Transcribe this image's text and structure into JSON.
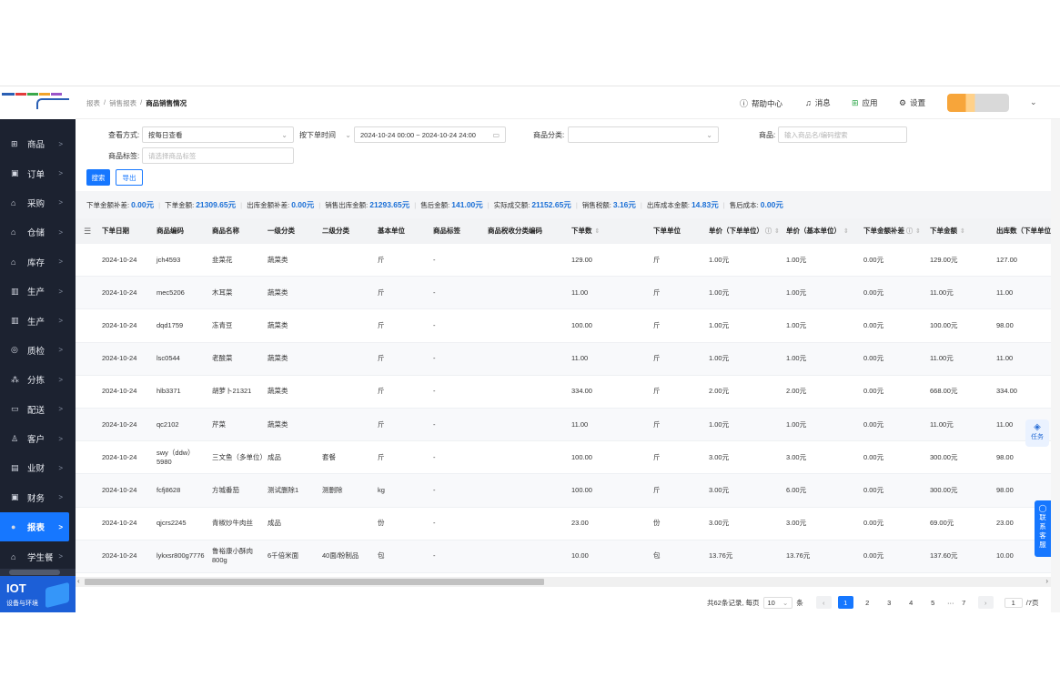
{
  "sidebar": {
    "items": [
      {
        "icon": "grid-icon",
        "glyph": "⊞",
        "label": "商品"
      },
      {
        "icon": "order-icon",
        "glyph": "▣",
        "label": "订单"
      },
      {
        "icon": "purchase-icon",
        "glyph": "⌂",
        "label": "采购"
      },
      {
        "icon": "warehouse-icon",
        "glyph": "⌂",
        "label": "仓储"
      },
      {
        "icon": "inventory-icon",
        "glyph": "⌂",
        "label": "库存"
      },
      {
        "icon": "production-icon",
        "glyph": "▥",
        "label": "生产"
      },
      {
        "icon": "production-icon",
        "glyph": "▥",
        "label": "生产"
      },
      {
        "icon": "quality-icon",
        "glyph": "◎",
        "label": "质检"
      },
      {
        "icon": "sorting-icon",
        "glyph": "⁂",
        "label": "分拣"
      },
      {
        "icon": "delivery-icon",
        "glyph": "▭",
        "label": "配送"
      },
      {
        "icon": "customer-icon",
        "glyph": "♙",
        "label": "客户"
      },
      {
        "icon": "finance-icon",
        "glyph": "▤",
        "label": "业财"
      },
      {
        "icon": "accounting-icon",
        "glyph": "▣",
        "label": "财务"
      },
      {
        "icon": "report-icon",
        "glyph": "●",
        "label": "报表",
        "active": true
      },
      {
        "icon": "school-meal-icon",
        "glyph": "⌂",
        "label": "学生餐"
      }
    ],
    "chevron": ">",
    "iot_title": "IOT",
    "iot_subtitle": "设备与环境"
  },
  "header": {
    "breadcrumb": [
      "报表",
      "/",
      "销售报表",
      "/",
      "商品销售情况"
    ],
    "help": "帮助中心",
    "messages": "消息",
    "apps": "应用",
    "settings": "设置"
  },
  "filters": {
    "view_mode_label": "查看方式:",
    "view_mode_value": "按每日查看",
    "time_type_value": "按下单时间",
    "date_range": "2024-10-24 00:00 ~ 2024-10-24 24:00",
    "category_label": "商品分类:",
    "product_label": "商品:",
    "product_placeholder": "输入商品名/编码搜索",
    "tag_label": "商品标签:",
    "tag_placeholder": "请选择商品标签",
    "search_button": "搜索",
    "export_button": "导出"
  },
  "summary": [
    {
      "label": "下单金额补差:",
      "value": "0.00元"
    },
    {
      "label": "下单金额:",
      "value": "21309.65元"
    },
    {
      "label": "出库金额补差:",
      "value": "0.00元"
    },
    {
      "label": "销售出库金额:",
      "value": "21293.65元"
    },
    {
      "label": "售后金额:",
      "value": "141.00元"
    },
    {
      "label": "实际成交额:",
      "value": "21152.65元"
    },
    {
      "label": "销售税额:",
      "value": "3.16元"
    },
    {
      "label": "出库成本金额:",
      "value": "14.83元"
    },
    {
      "label": "售后成本:",
      "value": "0.00元"
    }
  ],
  "table": {
    "columns": [
      "下单日期",
      "商品编码",
      "商品名称",
      "一级分类",
      "二级分类",
      "基本单位",
      "商品标签",
      "商品税收分类编码",
      "下单数",
      "下单单位",
      "单价（下单单位）",
      "单价（基本单位）",
      "下单金额补差",
      "下单金额",
      "出库数（下单单位）"
    ],
    "rows": [
      [
        "2024-10-24",
        "jch4593",
        "韭菜花",
        "蔬菜类",
        "",
        "斤",
        "-",
        "",
        "129.00",
        "斤",
        "1.00元",
        "1.00元",
        "0.00元",
        "129.00元",
        "127.00"
      ],
      [
        "2024-10-24",
        "mec5206",
        "木耳菜",
        "蔬菜类",
        "",
        "斤",
        "-",
        "",
        "11.00",
        "斤",
        "1.00元",
        "1.00元",
        "0.00元",
        "11.00元",
        "11.00"
      ],
      [
        "2024-10-24",
        "dqd1759",
        "冻青豆",
        "蔬菜类",
        "",
        "斤",
        "-",
        "",
        "100.00",
        "斤",
        "1.00元",
        "1.00元",
        "0.00元",
        "100.00元",
        "98.00"
      ],
      [
        "2024-10-24",
        "lsc0544",
        "老酸菜",
        "蔬菜类",
        "",
        "斤",
        "-",
        "",
        "11.00",
        "斤",
        "1.00元",
        "1.00元",
        "0.00元",
        "11.00元",
        "11.00"
      ],
      [
        "2024-10-24",
        "hlb3371",
        "胡萝卜21321",
        "蔬菜类",
        "",
        "斤",
        "-",
        "",
        "334.00",
        "斤",
        "2.00元",
        "2.00元",
        "0.00元",
        "668.00元",
        "334.00"
      ],
      [
        "2024-10-24",
        "qc2102",
        "芹菜",
        "蔬菜类",
        "",
        "斤",
        "-",
        "",
        "11.00",
        "斤",
        "1.00元",
        "1.00元",
        "0.00元",
        "11.00元",
        "11.00"
      ],
      [
        "2024-10-24",
        "swy（ddw）5980",
        "三文鱼（多单位）",
        "成品",
        "套餐",
        "斤",
        "-",
        "",
        "100.00",
        "斤",
        "3.00元",
        "3.00元",
        "0.00元",
        "300.00元",
        "98.00"
      ],
      [
        "2024-10-24",
        "fcfj8628",
        "方城番茄",
        "测试删除1",
        "测删除",
        "kg",
        "-",
        "",
        "100.00",
        "斤",
        "3.00元",
        "6.00元",
        "0.00元",
        "300.00元",
        "98.00"
      ],
      [
        "2024-10-24",
        "qjcrs2245",
        "青椒炒牛肉丝",
        "成品",
        "",
        "份",
        "-",
        "",
        "23.00",
        "份",
        "3.00元",
        "3.00元",
        "0.00元",
        "69.00元",
        "23.00"
      ],
      [
        "2024-10-24",
        "lykxsr800g7776",
        "鲁裕康小酥肉800g",
        "6千倍米面",
        "40面/粉制品",
        "包",
        "-",
        "",
        "10.00",
        "包",
        "13.76元",
        "13.76元",
        "0.00元",
        "137.60元",
        "10.00"
      ]
    ]
  },
  "pagination": {
    "total_text": "共62条记录, 每页",
    "page_size": "10",
    "unit": "条",
    "prev": "‹",
    "pages": [
      "1",
      "2",
      "3",
      "4",
      "5",
      "···",
      "7"
    ],
    "current": "1",
    "next": "›",
    "goto_value": "1",
    "total_pages": "/7页"
  },
  "floating": {
    "task": "任务",
    "contact": [
      "联",
      "系",
      "客",
      "服"
    ]
  }
}
